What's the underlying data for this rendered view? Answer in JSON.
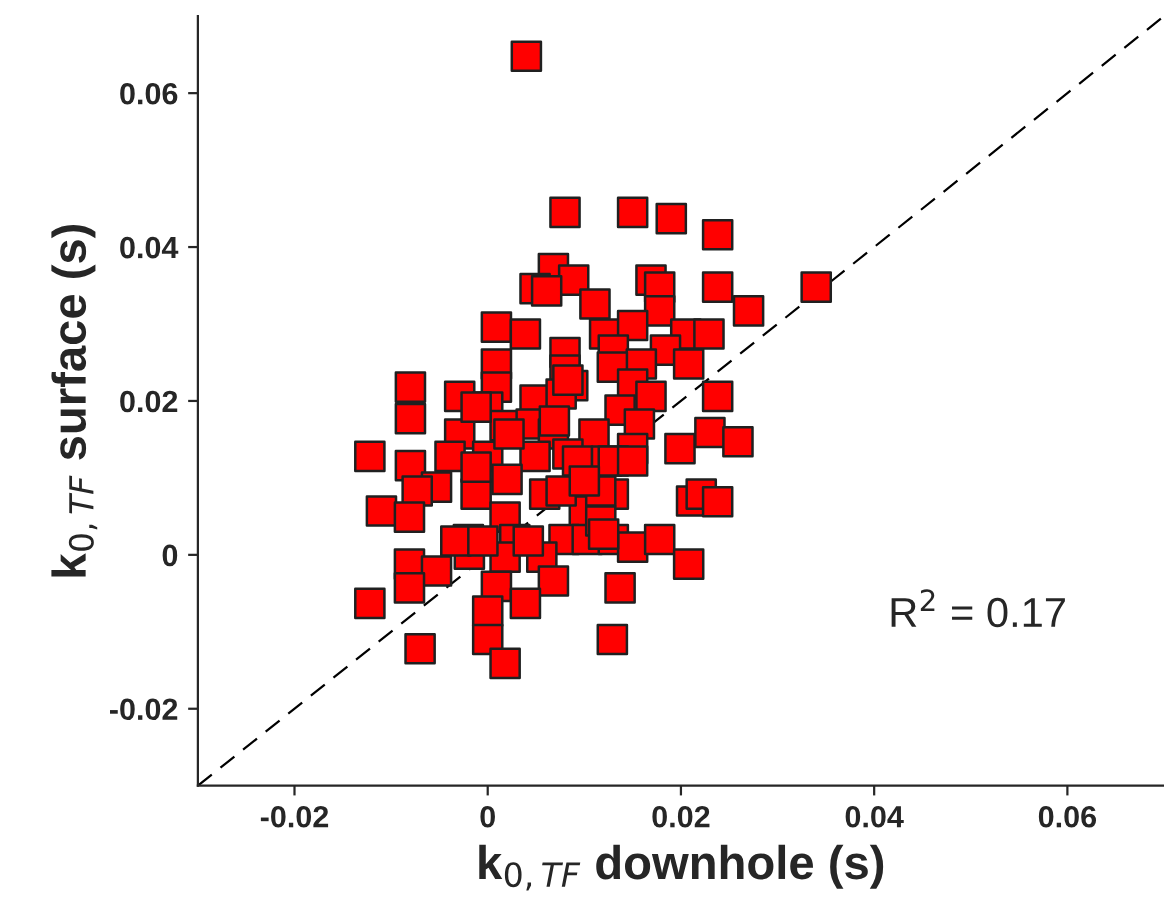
{
  "chart_data": {
    "type": "scatter",
    "xlabel": "k$_{0,TF}$ downhole (s)",
    "ylabel": "k$_{0,TF}$ surface (s)",
    "annotations": [
      "R$^{2}$ = 0.17"
    ],
    "xlim": [
      -0.03,
      0.07
    ],
    "ylim": [
      -0.03,
      0.07
    ],
    "xticks": [
      -0.02,
      0,
      0.02,
      0.04,
      0.06
    ],
    "yticks": [
      -0.02,
      0,
      0.02,
      0.04,
      0.06
    ],
    "grid": false,
    "marker": "square",
    "series": [
      {
        "type": "line",
        "marker": "none",
        "color": "#000000",
        "line_style": "dashed",
        "x": [
          -0.03,
          0.07
        ],
        "values": [
          -0.03,
          0.07
        ]
      },
      {
        "color": "#ff0000",
        "x": [
          0.004,
          0.008,
          0.015,
          0.019,
          0.0238,
          0.034,
          0.027,
          0.0238,
          0.0068,
          0.0089,
          0.0049,
          0.0061,
          0.0169,
          0.0178,
          0.0178,
          0.0111,
          0.0009,
          0.0039,
          0.0121,
          0.015,
          0.0205,
          0.0229,
          0.008,
          0.013,
          0.0184,
          0.0208,
          0.0159,
          0.0009,
          0.0129,
          0.008,
          -0.008,
          0.0009,
          0.0088,
          0.015,
          -0.0029,
          0.0169,
          0.0238,
          0.0049,
          0.0,
          -0.008,
          0.0137,
          0.0018,
          0.0045,
          0.0068,
          0.011,
          0.0157,
          -0.0029,
          -0.0122,
          -0.008,
          -0.0039,
          0.0,
          0.015,
          0.0199,
          0.023,
          0.0259,
          0.0049,
          0.0083,
          -0.0053,
          0.002,
          0.0059,
          -0.0073,
          -0.011,
          -0.0081,
          -0.0012,
          0.01,
          0.013,
          0.0211,
          0.0221,
          0.0238,
          -0.002,
          0.0018,
          0.0028,
          0.0079,
          0.0103,
          0.013,
          0.015,
          0.0178,
          0.0018,
          -0.0081,
          -0.0053,
          -0.0019,
          0.0056,
          0.0208,
          -0.0081,
          0.0068,
          0.0009,
          0.0137,
          -0.0122,
          0.0039,
          0.0,
          0.0,
          0.0129,
          -0.007,
          0.0018,
          -0.0012,
          0.0076,
          0.0083,
          0.0069,
          0.0093,
          0.0123,
          0.0022,
          -0.0012,
          0.0076,
          0.0117,
          0.013,
          -0.0033,
          -0.0005,
          0.0042,
          0.0117,
          0.012,
          0.01,
          0.015
        ],
        "values": [
          0.0648,
          0.0445,
          0.0445,
          0.0437,
          0.0416,
          0.0348,
          0.0317,
          0.0348,
          0.0372,
          0.0357,
          0.0346,
          0.0343,
          0.0357,
          0.0348,
          0.0317,
          0.0326,
          0.0296,
          0.0287,
          0.0287,
          0.0298,
          0.0287,
          0.0287,
          0.0263,
          0.0266,
          0.0266,
          0.0248,
          0.0248,
          0.0248,
          0.0244,
          0.024,
          0.0218,
          0.0218,
          0.022,
          0.0222,
          0.0206,
          0.0206,
          0.0206,
          0.0201,
          0.0192,
          0.0177,
          0.0188,
          0.0168,
          0.017,
          0.0157,
          0.0157,
          0.017,
          0.0157,
          0.0128,
          0.0116,
          0.0128,
          0.0128,
          0.0138,
          0.0138,
          0.0159,
          0.0147,
          0.0128,
          0.0131,
          0.0088,
          0.0098,
          0.0079,
          0.0083,
          0.0057,
          0.0049,
          0.0079,
          0.0057,
          0.0079,
          0.007,
          0.0079,
          0.0069,
          0.002,
          0.0049,
          0.002,
          0.002,
          0.002,
          0.002,
          0.001,
          0.002,
          -0.0003,
          -0.0012,
          -0.0021,
          0.0001,
          -0.0003,
          -0.0012,
          -0.0043,
          -0.0034,
          -0.0041,
          -0.0043,
          -0.0063,
          -0.0063,
          -0.0073,
          -0.011,
          -0.011,
          -0.0122,
          -0.0141,
          0.0192,
          0.0209,
          0.0227,
          0.0174,
          0.0122,
          0.0122,
          0.0157,
          0.0114,
          0.0083,
          0.0083,
          0.0122,
          0.0018,
          0.0018,
          0.0018,
          0.0044,
          0.0027,
          0.0096,
          0.0122
        ]
      }
    ]
  }
}
